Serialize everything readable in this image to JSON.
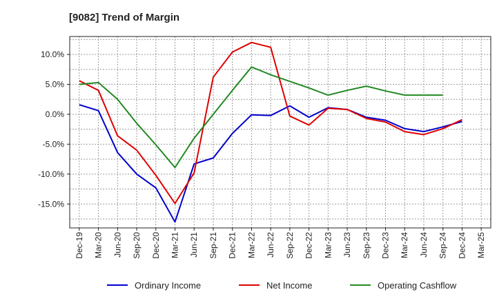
{
  "chart_data": {
    "type": "line",
    "title": "[9082]  Trend of Margin",
    "xlabel": "",
    "ylabel": "",
    "x": [
      "Dec-19",
      "Mar-20",
      "Jun-20",
      "Sep-20",
      "Dec-20",
      "Mar-21",
      "Jun-21",
      "Sep-21",
      "Dec-21",
      "Mar-22",
      "Jun-22",
      "Sep-22",
      "Dec-22",
      "Mar-23",
      "Jun-23",
      "Sep-23",
      "Dec-23",
      "Mar-24",
      "Jun-24",
      "Sep-24",
      "Dec-24",
      "Mar-25"
    ],
    "ylim": [
      -19.0,
      13.0
    ],
    "yticks": [
      10,
      5,
      0,
      -5,
      -10,
      -15
    ],
    "ytick_labels": [
      "10.0%",
      "5.0%",
      "0.0%",
      "-5.0%",
      "-10.0%",
      "-15.0%"
    ],
    "grid": true,
    "legend_position": "bottom",
    "series": [
      {
        "name": "Ordinary Income",
        "color": "#0000cc",
        "values": [
          1.6,
          0.6,
          -6.4,
          -10.0,
          -12.3,
          -18.0,
          -8.3,
          -7.3,
          -3.2,
          -0.1,
          -0.2,
          1.4,
          -0.5,
          1.1,
          0.8,
          -0.5,
          -1.0,
          -2.4,
          -2.9,
          -2.1,
          -1.2,
          null
        ]
      },
      {
        "name": "Net Income",
        "color": "#dd0000",
        "values": [
          5.6,
          4.0,
          -3.6,
          -6.0,
          -10.2,
          -14.9,
          -9.8,
          6.2,
          10.4,
          12.0,
          11.2,
          -0.3,
          -1.8,
          1.0,
          0.8,
          -0.7,
          -1.3,
          -2.9,
          -3.4,
          -2.4,
          -0.9,
          null
        ]
      },
      {
        "name": "Operating Cashflow",
        "color": "#228822",
        "values": [
          5.0,
          5.3,
          2.5,
          -1.5,
          -5.1,
          -8.9,
          -4.0,
          0.0,
          4.0,
          7.9,
          6.6,
          5.5,
          4.4,
          3.2,
          4.0,
          4.7,
          3.9,
          3.2,
          3.2,
          3.2,
          null,
          null
        ]
      }
    ]
  }
}
